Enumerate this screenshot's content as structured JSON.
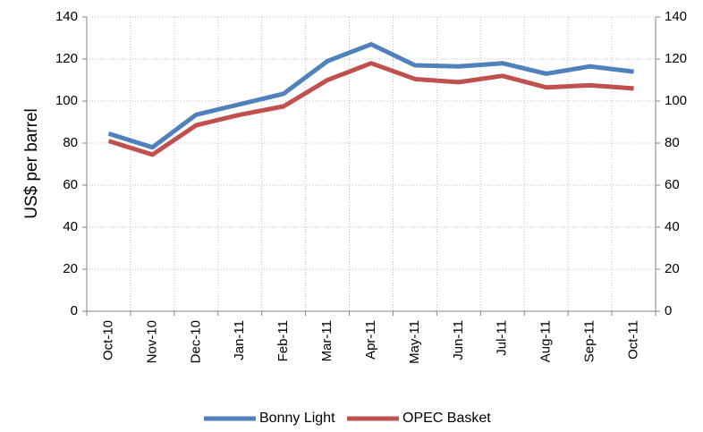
{
  "chart_data": {
    "type": "line",
    "y_label": "US$ per barrel",
    "categories": [
      "Oct-10",
      "Nov-10",
      "Dec-10",
      "Jan-11",
      "Feb-11",
      "Mar-11",
      "Apr-11",
      "May-11",
      "Jun-11",
      "Jul-11",
      "Aug-11",
      "Sep-11",
      "Oct-11"
    ],
    "series": [
      {
        "name": "Bonny Light",
        "color": "#4f81bd",
        "values": [
          84.5,
          78,
          93.5,
          98.5,
          103.5,
          119,
          127,
          117,
          116.5,
          118,
          113,
          116.5,
          114
        ]
      },
      {
        "name": "OPEC Basket",
        "color": "#c0504d",
        "values": [
          81,
          74.5,
          88.5,
          93.5,
          97.5,
          110,
          118,
          110.5,
          109,
          112,
          106.5,
          107.5,
          106
        ]
      }
    ],
    "ylim": [
      0,
      140
    ],
    "yticks": [
      0,
      20,
      40,
      60,
      80,
      100,
      120,
      140
    ],
    "y2lim": [
      0,
      140
    ],
    "y2ticks": [
      0,
      20,
      40,
      60,
      80,
      100,
      120,
      140
    ],
    "grid": true,
    "legend": "bottom"
  }
}
